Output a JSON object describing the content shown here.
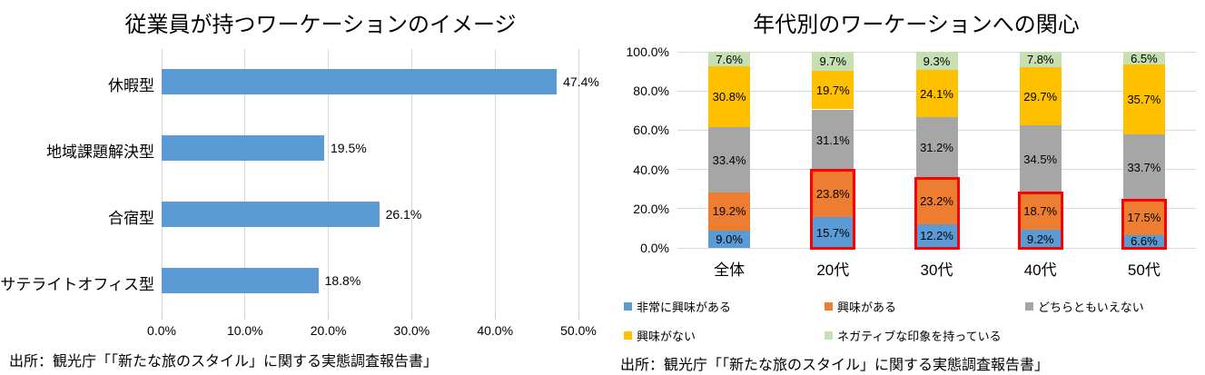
{
  "page": {
    "background": "#ffffff",
    "text_color": "#000000",
    "gridline_color": "#d9d9d9",
    "highlight_color": "#ff0000"
  },
  "chart_data": [
    {
      "type": "bar",
      "orientation": "horizontal",
      "title": "従業員が持つワーケーションのイメージ",
      "categories": [
        "休暇型",
        "地域課題解決型",
        "合宿型",
        "サテライトオフィス型"
      ],
      "values": [
        47.4,
        19.5,
        26.1,
        18.8
      ],
      "value_labels": [
        "47.4%",
        "19.5%",
        "26.1%",
        "18.8%"
      ],
      "xlim": [
        0,
        50
      ],
      "x_ticks": [
        "0.0%",
        "10.0%",
        "20.0%",
        "30.0%",
        "40.0%",
        "50.0%"
      ],
      "bar_color": "#5b9bd5",
      "grid": true,
      "legend_position": "none",
      "source": "出所：観光庁「「新たな旅のスタイル」に関する実態調査報告書」"
    },
    {
      "type": "bar",
      "subtype": "stacked-100-percent",
      "title": "年代別のワーケーションへの関心",
      "categories": [
        "全体",
        "20代",
        "30代",
        "40代",
        "50代"
      ],
      "series": [
        {
          "name": "非常に興味がある",
          "color": "#5b9bd5",
          "values": [
            9.0,
            15.7,
            12.2,
            9.2,
            6.6
          ]
        },
        {
          "name": "興味がある",
          "color": "#ed7d31",
          "values": [
            19.2,
            23.8,
            23.2,
            18.7,
            17.5
          ]
        },
        {
          "name": "どちらともいえない",
          "color": "#a6a6a6",
          "values": [
            33.4,
            31.1,
            31.2,
            34.5,
            33.7
          ]
        },
        {
          "name": "興味がない",
          "color": "#ffc000",
          "values": [
            30.8,
            19.7,
            24.1,
            29.7,
            35.7
          ]
        },
        {
          "name": "ネガティブな印象を持っている",
          "color": "#c6e0b4",
          "values": [
            7.6,
            9.7,
            9.3,
            7.8,
            6.5
          ]
        }
      ],
      "ylim": [
        0,
        100
      ],
      "y_ticks": [
        "0.0%",
        "20.0%",
        "40.0%",
        "60.0%",
        "80.0%",
        "100.0%"
      ],
      "grid": true,
      "legend_position": "bottom",
      "highlight": {
        "note": "red outline around bottom two segments (非常に興味がある + 興味がある)",
        "columns": [
          "20代",
          "30代",
          "40代",
          "50代"
        ],
        "color": "#ff0000"
      },
      "source": "出所：観光庁「「新たな旅のスタイル」に関する実態調査報告書」"
    }
  ]
}
